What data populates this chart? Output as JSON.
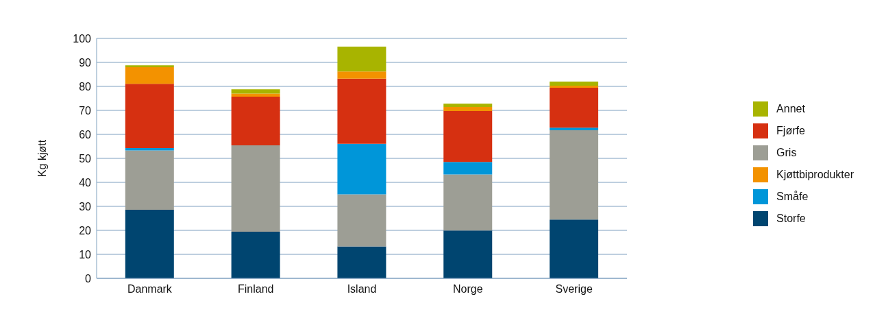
{
  "chart_data": {
    "type": "bar",
    "stacked": true,
    "ylabel": "Kg kjøtt",
    "categories": [
      "Danmark",
      "Finland",
      "Island",
      "Norge",
      "Sverige"
    ],
    "series": [
      {
        "name": "Storfe",
        "color": "#004570",
        "values": [
          28.6,
          19.4,
          13.3,
          19.9,
          24.5
        ]
      },
      {
        "name": "Gris",
        "color": "#9d9e95",
        "values": [
          24.7,
          36.0,
          21.7,
          23.4,
          37.2
        ]
      },
      {
        "name": "Småfe",
        "color": "#0096d9",
        "values": [
          1.0,
          null,
          21.1,
          5.2,
          1.1
        ]
      },
      {
        "name": "Fjørfe",
        "color": "#d63011",
        "values": [
          26.8,
          20.3,
          27.1,
          21.2,
          16.6
        ]
      },
      {
        "name": "Kjøttbiprodukter",
        "color": "#f39200",
        "values": [
          6.9,
          1.3,
          3.0,
          1.7,
          0.9
        ]
      },
      {
        "name": "Annet",
        "color": "#a8b400",
        "values": [
          0.8,
          1.8,
          10.4,
          1.4,
          1.7
        ]
      }
    ],
    "ylim": [
      0,
      100
    ],
    "yticks": [
      0,
      10,
      20,
      30,
      40,
      50,
      60,
      70,
      80,
      90,
      100
    ],
    "grid": "y",
    "legend": "right"
  }
}
